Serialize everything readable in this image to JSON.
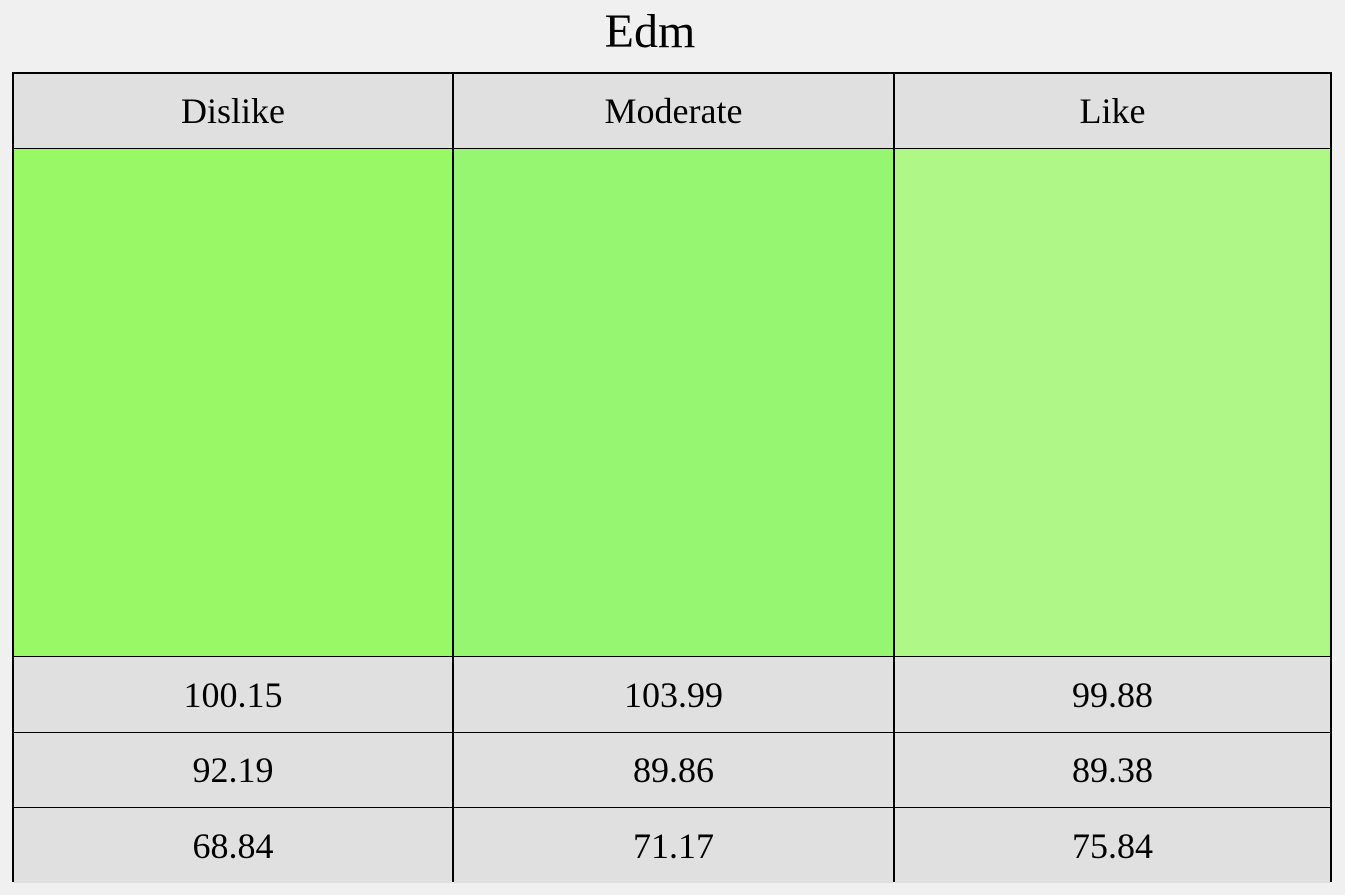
{
  "chart_data": {
    "type": "table",
    "title": "Edm",
    "categories": [
      "Dislike",
      "Moderate",
      "Like"
    ],
    "cell_colors": [
      "#98f866",
      "#96f571",
      "#aff787"
    ],
    "rows": [
      [
        "100.15",
        "103.99",
        "99.88"
      ],
      [
        "92.19",
        "89.86",
        "89.38"
      ],
      [
        "68.84",
        "71.17",
        "75.84"
      ]
    ]
  }
}
